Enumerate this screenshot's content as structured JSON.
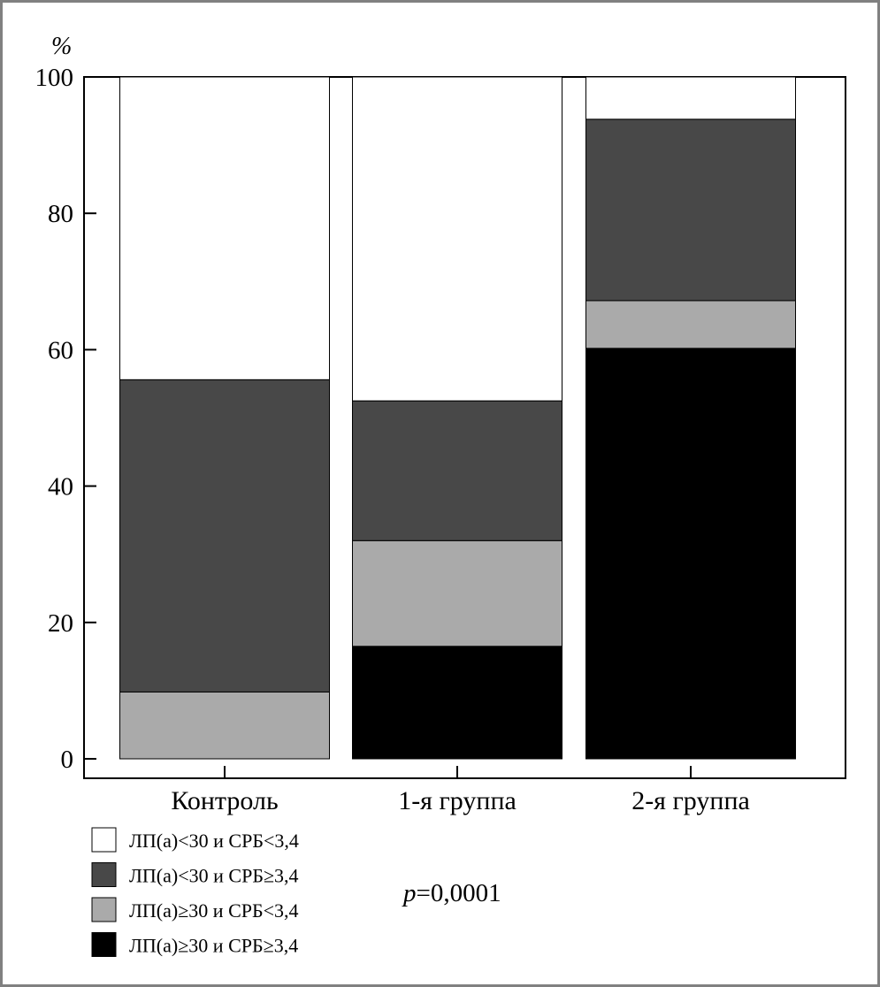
{
  "chart_data": {
    "type": "bar",
    "stacked": true,
    "y_unit": "%",
    "ylim": [
      0,
      100
    ],
    "yticks": [
      "0",
      "20",
      "40",
      "60",
      "80",
      "100"
    ],
    "categories": [
      "Контроль",
      "1-я группа",
      "2-я группа"
    ],
    "series": [
      {
        "name": "ЛП(а)≥30 и СРБ≥3,4",
        "color": "#000000",
        "values": [
          0,
          16.5,
          60.2
        ]
      },
      {
        "name": "ЛП(а)≥30 и СРБ<3,4",
        "color": "#aaaaaa",
        "values": [
          9.8,
          15.5,
          7.0
        ]
      },
      {
        "name": "ЛП(а)<30 и СРБ≥3,4",
        "color": "#484848",
        "values": [
          45.8,
          20.5,
          26.6
        ]
      },
      {
        "name": "ЛП(а)<30 и СРБ<3,4",
        "color": "#ffffff",
        "values": [
          44.4,
          47.5,
          6.2
        ]
      }
    ],
    "legend_order": [
      3,
      2,
      1,
      0
    ],
    "legend_position": "bottom-left",
    "annotation": {
      "p_symbol": "p",
      "p_value": "=0,0001"
    }
  }
}
